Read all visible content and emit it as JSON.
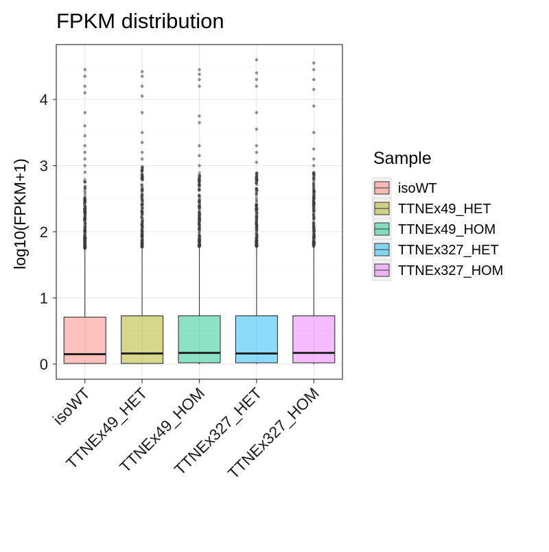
{
  "chart_data": {
    "type": "box",
    "title": "FPKM distribution",
    "xlabel": "",
    "ylabel": "log10(FPKM+1)",
    "ylim": [
      -0.2,
      4.8
    ],
    "yticks": [
      0,
      1,
      2,
      3,
      4
    ],
    "ytick_labels": [
      "0",
      "1",
      "2",
      "3",
      "4"
    ],
    "grid": true,
    "legend": {
      "title": "Sample",
      "position": "right"
    },
    "categories": [
      "isoWT",
      "TTNEx49_HET",
      "TTNEx49_HOM",
      "TTNEx327_HET",
      "TTNEx327_HOM"
    ],
    "series": [
      {
        "name": "isoWT",
        "color": "#F8766D",
        "min": 0.0,
        "q1": 0.01,
        "median": 0.15,
        "q3": 0.71,
        "upper_whisker": 1.75,
        "outliers_dense_range": [
          1.75,
          2.8
        ],
        "outliers_sparse": [
          2.9,
          3.0,
          3.1,
          3.2,
          3.3,
          3.45,
          3.6,
          3.8,
          4.1,
          4.2,
          4.35,
          4.45
        ]
      },
      {
        "name": "TTNEx49_HET",
        "color": "#A3A500",
        "min": 0.0,
        "q1": 0.01,
        "median": 0.16,
        "q3": 0.73,
        "upper_whisker": 1.77,
        "outliers_dense_range": [
          1.77,
          3.0
        ],
        "outliers_sparse": [
          3.1,
          3.2,
          3.35,
          3.5,
          3.8,
          4.05,
          4.2,
          4.35,
          4.42
        ]
      },
      {
        "name": "TTNEx49_HOM",
        "color": "#00BF7D",
        "min": 0.0,
        "q1": 0.02,
        "median": 0.17,
        "q3": 0.73,
        "upper_whisker": 1.78,
        "outliers_dense_range": [
          1.78,
          2.9
        ],
        "outliers_sparse": [
          3.0,
          3.15,
          3.3,
          3.65,
          3.75,
          4.2,
          4.3,
          4.38,
          4.45
        ]
      },
      {
        "name": "TTNEx327_HET",
        "color": "#00B0F6",
        "min": 0.0,
        "q1": 0.02,
        "median": 0.16,
        "q3": 0.73,
        "upper_whisker": 1.78,
        "outliers_dense_range": [
          1.78,
          2.95
        ],
        "outliers_sparse": [
          3.05,
          3.2,
          3.3,
          3.55,
          3.8,
          4.2,
          4.3,
          4.4,
          4.6
        ]
      },
      {
        "name": "TTNEx327_HOM",
        "color": "#E76BF3",
        "min": 0.0,
        "q1": 0.02,
        "median": 0.17,
        "q3": 0.73,
        "upper_whisker": 1.78,
        "outliers_dense_range": [
          1.78,
          2.9
        ],
        "outliers_sparse": [
          3.0,
          3.1,
          3.25,
          3.5,
          3.9,
          4.15,
          4.3,
          4.45,
          4.55
        ]
      }
    ]
  }
}
